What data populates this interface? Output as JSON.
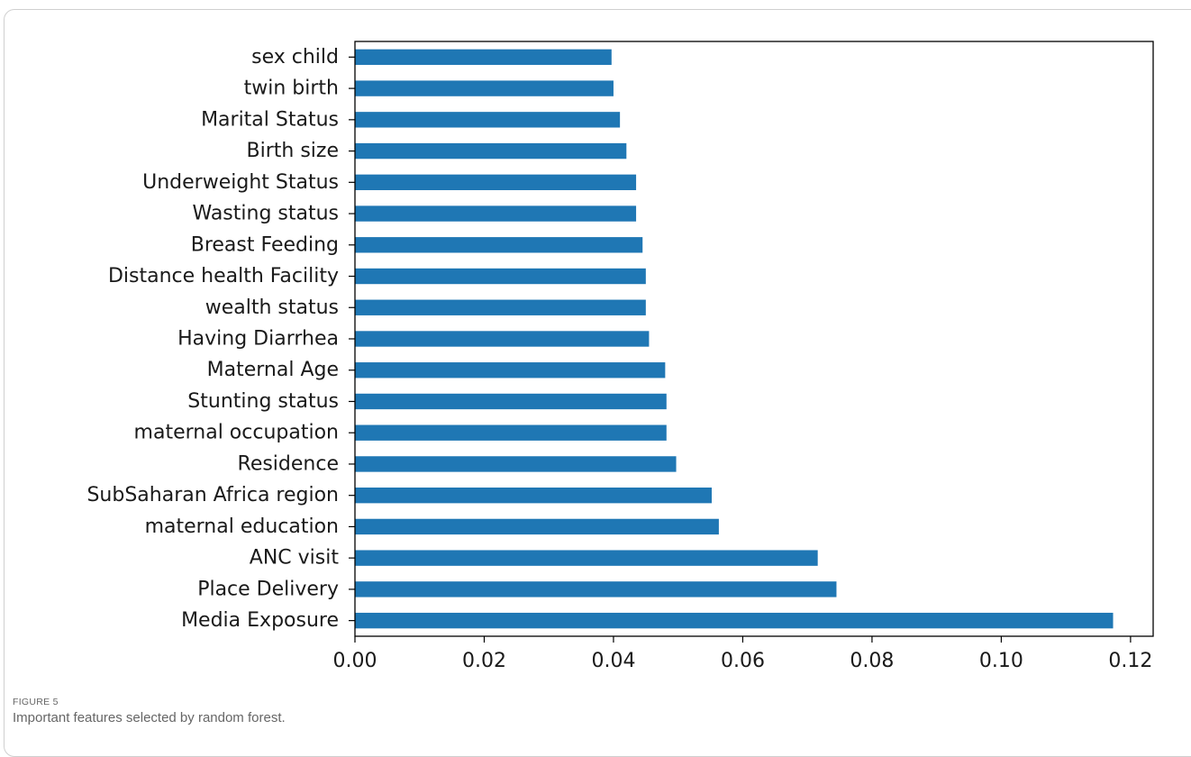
{
  "figure": {
    "label": "FIGURE 5",
    "caption": "Important features selected by random forest."
  },
  "colors": {
    "bar": "#1f77b4",
    "axis": "#000000"
  },
  "chart_data": {
    "type": "bar",
    "orientation": "horizontal",
    "categories": [
      "sex child",
      "twin birth",
      "Marital Status",
      "Birth size",
      "Underweight Status",
      "Wasting status",
      "Breast Feeding",
      "Distance health Facility",
      "wealth status",
      "Having Diarrhea",
      "Maternal Age",
      "Stunting status",
      "maternal occupation",
      "Residence",
      "SubSaharan Africa region",
      "maternal education",
      "ANC visit",
      "Place Delivery",
      "Media Exposure"
    ],
    "values": [
      0.0397,
      0.04,
      0.041,
      0.042,
      0.0435,
      0.0435,
      0.0445,
      0.045,
      0.045,
      0.0455,
      0.048,
      0.0482,
      0.0482,
      0.0497,
      0.0552,
      0.0563,
      0.0716,
      0.0745,
      0.1173
    ],
    "xlim": [
      0,
      0.1235
    ],
    "xticks": [
      0.0,
      0.02,
      0.04,
      0.06,
      0.08,
      0.1,
      0.12
    ],
    "xtick_labels": [
      "0.00",
      "0.02",
      "0.04",
      "0.06",
      "0.08",
      "0.10",
      "0.12"
    ],
    "grid": false,
    "title": "",
    "xlabel": "",
    "ylabel": ""
  }
}
